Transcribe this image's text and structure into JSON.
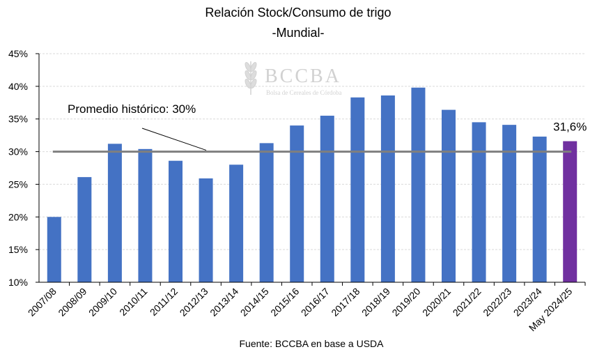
{
  "chart_data": {
    "type": "bar",
    "title": "Relación Stock/Consumo de trigo",
    "subtitle": "-Mundial-",
    "source": "Fuente: BCCBA en base a USDA",
    "categories": [
      "2007/08",
      "2008/09",
      "2009/10",
      "2010/11",
      "2011/12",
      "2012/13",
      "2013/14",
      "2014/15",
      "2015/16",
      "2016/17",
      "2017/18",
      "2018/19",
      "2019/20",
      "2020/21",
      "2021/22",
      "2022/23",
      "2023/24",
      "May 2024/25"
    ],
    "values": [
      20.0,
      26.1,
      31.2,
      30.4,
      28.6,
      25.9,
      28.0,
      31.3,
      34.0,
      35.5,
      38.3,
      38.6,
      39.8,
      36.4,
      34.5,
      34.1,
      32.3,
      31.6
    ],
    "colors": [
      "#4472C4",
      "#4472C4",
      "#4472C4",
      "#4472C4",
      "#4472C4",
      "#4472C4",
      "#4472C4",
      "#4472C4",
      "#4472C4",
      "#4472C4",
      "#4472C4",
      "#4472C4",
      "#4472C4",
      "#4472C4",
      "#4472C4",
      "#4472C4",
      "#4472C4",
      "#7030A0"
    ],
    "ylim": [
      10,
      45
    ],
    "yticks": [
      10,
      15,
      20,
      25,
      30,
      35,
      40,
      45
    ],
    "ytick_labels": [
      "10%",
      "15%",
      "20%",
      "25%",
      "30%",
      "35%",
      "40%",
      "45%"
    ],
    "grid": true,
    "reference_line": {
      "value": 30,
      "label": "Promedio histórico: 30%",
      "color": "#7F7F7F"
    },
    "annotations": [
      {
        "category": "May 2024/25",
        "text": "31,6%"
      }
    ],
    "watermark": {
      "name": "BCCBA",
      "tagline": "Bolsa de Cereales de Córdoba"
    }
  }
}
